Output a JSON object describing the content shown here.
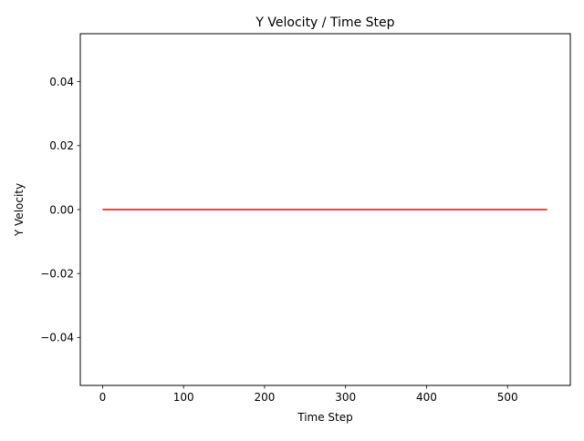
{
  "chart_data": {
    "type": "line",
    "title": "Y Velocity / Time Step",
    "xlabel": "Time Step",
    "ylabel": "Y Velocity",
    "xlim": [
      -27.5,
      577.5
    ],
    "ylim": [
      -0.055,
      0.055
    ],
    "x_ticks": [
      0,
      100,
      200,
      300,
      400,
      500
    ],
    "x_tick_labels": [
      "0",
      "100",
      "200",
      "300",
      "400",
      "500"
    ],
    "y_ticks": [
      -0.04,
      -0.02,
      0.0,
      0.02,
      0.04
    ],
    "y_tick_labels": [
      "−0.04",
      "−0.02",
      "0.00",
      "0.02",
      "0.04"
    ],
    "grid": false,
    "legend": "none",
    "series": [
      {
        "color": "#ff0000",
        "x": [
          0,
          549
        ],
        "y": [
          0.0,
          0.0
        ]
      }
    ]
  }
}
